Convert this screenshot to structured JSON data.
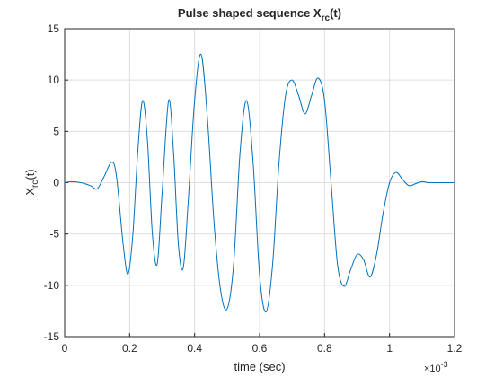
{
  "chart_data": {
    "type": "line",
    "title": {
      "text": "Pulse shaped sequence X",
      "sub": "rc",
      "tail": "(t)"
    },
    "xlabel": "time (sec)",
    "ylabel": {
      "text": "X",
      "sub": "rc",
      "tail": "(t)"
    },
    "x_exponent": {
      "base": "×10",
      "power": "-3"
    },
    "x": [
      0,
      0.02,
      0.05,
      0.08,
      0.1,
      0.12,
      0.145,
      0.16,
      0.18,
      0.195,
      0.21,
      0.225,
      0.24,
      0.255,
      0.27,
      0.285,
      0.3,
      0.32,
      0.335,
      0.35,
      0.365,
      0.38,
      0.4,
      0.42,
      0.44,
      0.46,
      0.48,
      0.5,
      0.52,
      0.54,
      0.56,
      0.58,
      0.6,
      0.62,
      0.64,
      0.66,
      0.68,
      0.7,
      0.72,
      0.74,
      0.76,
      0.78,
      0.8,
      0.82,
      0.84,
      0.86,
      0.88,
      0.9,
      0.92,
      0.94,
      0.96,
      0.98,
      1.0,
      1.02,
      1.04,
      1.06,
      1.08,
      1.1,
      1.12,
      1.15,
      1.2
    ],
    "series": [
      {
        "color": "#0072bd",
        "values": [
          0,
          0.1,
          0,
          -0.3,
          -0.6,
          0.5,
          2.0,
          0.5,
          -6,
          -8.9,
          -5,
          3,
          8,
          4,
          -5,
          -7.9,
          -1,
          8,
          3,
          -6,
          -8.3,
          -2,
          8,
          12.5,
          6,
          -4,
          -10.5,
          -12.3,
          -8,
          3,
          8,
          2,
          -9,
          -12.6,
          -8,
          2,
          8.5,
          10,
          8.5,
          6.7,
          8.5,
          10.2,
          8,
          0,
          -8,
          -10.1,
          -8.5,
          -7,
          -7.5,
          -9.2,
          -7,
          -3,
          0,
          1.0,
          0.3,
          -0.3,
          -0.1,
          0.1,
          0,
          0,
          0
        ]
      }
    ],
    "xlim": [
      0,
      1.2
    ],
    "ylim": [
      -15,
      15
    ],
    "xticks": [
      0,
      0.2,
      0.4,
      0.6,
      0.8,
      1,
      1.2
    ],
    "yticks": [
      -15,
      -10,
      -5,
      0,
      5,
      10,
      15
    ],
    "grid": true
  }
}
